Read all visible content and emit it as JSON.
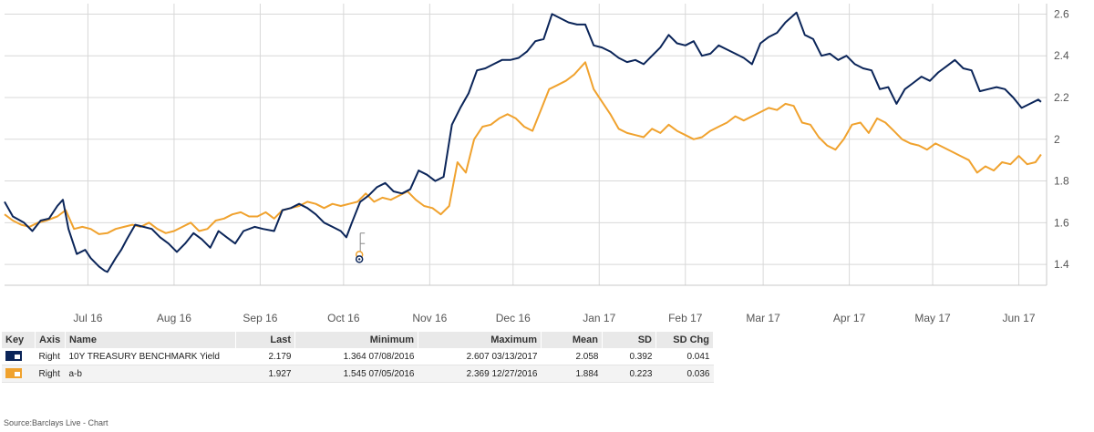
{
  "chart_data": {
    "type": "line",
    "y_axis_side": "right",
    "ylim": [
      1.3,
      2.65
    ],
    "yticks": [
      1.4,
      1.6,
      1.8,
      2,
      2.2,
      2.4,
      2.6
    ],
    "ytick_labels": [
      "1.4",
      "1.6",
      "1.8",
      "2",
      "2.2",
      "2.4",
      "2.6"
    ],
    "xlim": [
      "2016-06-01",
      "2017-06-11"
    ],
    "x_tick_dates": [
      "2016-07-01",
      "2016-08-01",
      "2016-09-01",
      "2016-10-01",
      "2016-11-01",
      "2016-12-01",
      "2017-01-01",
      "2017-02-01",
      "2017-03-01",
      "2017-04-01",
      "2017-05-01",
      "2017-06-01"
    ],
    "x_tick_labels": [
      "Jul 16",
      "Aug 16",
      "Sep 16",
      "Oct 16",
      "Nov 16",
      "Dec 16",
      "Jan 17",
      "Feb 17",
      "Mar 17",
      "Apr 17",
      "May 17",
      "Jun 17"
    ],
    "grid": true,
    "series": [
      {
        "name": "10Y TREASURY BENCHMARK Yield",
        "color": "#0b2559",
        "points": [
          [
            "2016-06-01",
            1.7
          ],
          [
            "2016-06-04",
            1.63
          ],
          [
            "2016-06-08",
            1.6
          ],
          [
            "2016-06-11",
            1.56
          ],
          [
            "2016-06-14",
            1.61
          ],
          [
            "2016-06-17",
            1.62
          ],
          [
            "2016-06-20",
            1.68
          ],
          [
            "2016-06-22",
            1.71
          ],
          [
            "2016-06-24",
            1.57
          ],
          [
            "2016-06-27",
            1.45
          ],
          [
            "2016-06-30",
            1.47
          ],
          [
            "2016-07-02",
            1.43
          ],
          [
            "2016-07-05",
            1.39
          ],
          [
            "2016-07-07",
            1.37
          ],
          [
            "2016-07-08",
            1.364
          ],
          [
            "2016-07-11",
            1.43
          ],
          [
            "2016-07-13",
            1.47
          ],
          [
            "2016-07-15",
            1.52
          ],
          [
            "2016-07-18",
            1.59
          ],
          [
            "2016-07-21",
            1.58
          ],
          [
            "2016-07-24",
            1.57
          ],
          [
            "2016-07-27",
            1.53
          ],
          [
            "2016-07-30",
            1.5
          ],
          [
            "2016-08-02",
            1.46
          ],
          [
            "2016-08-05",
            1.5
          ],
          [
            "2016-08-08",
            1.55
          ],
          [
            "2016-08-11",
            1.52
          ],
          [
            "2016-08-14",
            1.48
          ],
          [
            "2016-08-17",
            1.56
          ],
          [
            "2016-08-20",
            1.53
          ],
          [
            "2016-08-23",
            1.5
          ],
          [
            "2016-08-26",
            1.56
          ],
          [
            "2016-08-30",
            1.58
          ],
          [
            "2016-09-02",
            1.57
          ],
          [
            "2016-09-06",
            1.56
          ],
          [
            "2016-09-09",
            1.66
          ],
          [
            "2016-09-12",
            1.67
          ],
          [
            "2016-09-15",
            1.69
          ],
          [
            "2016-09-18",
            1.67
          ],
          [
            "2016-09-21",
            1.64
          ],
          [
            "2016-09-24",
            1.6
          ],
          [
            "2016-09-27",
            1.58
          ],
          [
            "2016-09-30",
            1.56
          ],
          [
            "2016-10-02",
            1.53
          ],
          [
            "2016-10-04",
            1.6
          ],
          [
            "2016-10-07",
            1.7
          ],
          [
            "2016-10-10",
            1.73
          ],
          [
            "2016-10-13",
            1.77
          ],
          [
            "2016-10-16",
            1.79
          ],
          [
            "2016-10-19",
            1.75
          ],
          [
            "2016-10-22",
            1.74
          ],
          [
            "2016-10-25",
            1.76
          ],
          [
            "2016-10-28",
            1.85
          ],
          [
            "2016-10-31",
            1.83
          ],
          [
            "2016-11-03",
            1.8
          ],
          [
            "2016-11-06",
            1.82
          ],
          [
            "2016-11-09",
            2.07
          ],
          [
            "2016-11-12",
            2.15
          ],
          [
            "2016-11-15",
            2.22
          ],
          [
            "2016-11-18",
            2.33
          ],
          [
            "2016-11-21",
            2.34
          ],
          [
            "2016-11-24",
            2.36
          ],
          [
            "2016-11-27",
            2.38
          ],
          [
            "2016-11-30",
            2.38
          ],
          [
            "2016-12-03",
            2.39
          ],
          [
            "2016-12-06",
            2.42
          ],
          [
            "2016-12-09",
            2.47
          ],
          [
            "2016-12-12",
            2.48
          ],
          [
            "2016-12-15",
            2.6
          ],
          [
            "2016-12-18",
            2.58
          ],
          [
            "2016-12-21",
            2.56
          ],
          [
            "2016-12-24",
            2.55
          ],
          [
            "2016-12-27",
            2.55
          ],
          [
            "2016-12-30",
            2.45
          ],
          [
            "2017-01-02",
            2.44
          ],
          [
            "2017-01-05",
            2.42
          ],
          [
            "2017-01-08",
            2.39
          ],
          [
            "2017-01-11",
            2.37
          ],
          [
            "2017-01-14",
            2.38
          ],
          [
            "2017-01-17",
            2.36
          ],
          [
            "2017-01-20",
            2.4
          ],
          [
            "2017-01-23",
            2.44
          ],
          [
            "2017-01-26",
            2.5
          ],
          [
            "2017-01-29",
            2.46
          ],
          [
            "2017-02-01",
            2.45
          ],
          [
            "2017-02-04",
            2.47
          ],
          [
            "2017-02-07",
            2.4
          ],
          [
            "2017-02-10",
            2.41
          ],
          [
            "2017-02-13",
            2.45
          ],
          [
            "2017-02-16",
            2.43
          ],
          [
            "2017-02-19",
            2.41
          ],
          [
            "2017-02-22",
            2.39
          ],
          [
            "2017-02-25",
            2.36
          ],
          [
            "2017-02-28",
            2.46
          ],
          [
            "2017-03-03",
            2.49
          ],
          [
            "2017-03-06",
            2.51
          ],
          [
            "2017-03-09",
            2.56
          ],
          [
            "2017-03-13",
            2.607
          ],
          [
            "2017-03-16",
            2.5
          ],
          [
            "2017-03-19",
            2.48
          ],
          [
            "2017-03-22",
            2.4
          ],
          [
            "2017-03-25",
            2.41
          ],
          [
            "2017-03-28",
            2.38
          ],
          [
            "2017-03-31",
            2.4
          ],
          [
            "2017-04-03",
            2.36
          ],
          [
            "2017-04-06",
            2.34
          ],
          [
            "2017-04-09",
            2.33
          ],
          [
            "2017-04-12",
            2.24
          ],
          [
            "2017-04-15",
            2.25
          ],
          [
            "2017-04-18",
            2.17
          ],
          [
            "2017-04-21",
            2.24
          ],
          [
            "2017-04-24",
            2.27
          ],
          [
            "2017-04-27",
            2.3
          ],
          [
            "2017-04-30",
            2.28
          ],
          [
            "2017-05-03",
            2.32
          ],
          [
            "2017-05-06",
            2.35
          ],
          [
            "2017-05-09",
            2.38
          ],
          [
            "2017-05-12",
            2.34
          ],
          [
            "2017-05-15",
            2.33
          ],
          [
            "2017-05-18",
            2.23
          ],
          [
            "2017-05-21",
            2.24
          ],
          [
            "2017-05-24",
            2.25
          ],
          [
            "2017-05-27",
            2.24
          ],
          [
            "2017-05-30",
            2.2
          ],
          [
            "2017-06-02",
            2.15
          ],
          [
            "2017-06-05",
            2.17
          ],
          [
            "2017-06-08",
            2.19
          ],
          [
            "2017-06-09",
            2.179
          ]
        ]
      },
      {
        "name": "a-b",
        "color": "#f0a22e",
        "points": [
          [
            "2016-06-01",
            1.64
          ],
          [
            "2016-06-04",
            1.61
          ],
          [
            "2016-06-07",
            1.59
          ],
          [
            "2016-06-10",
            1.58
          ],
          [
            "2016-06-13",
            1.6
          ],
          [
            "2016-06-16",
            1.61
          ],
          [
            "2016-06-20",
            1.63
          ],
          [
            "2016-06-23",
            1.66
          ],
          [
            "2016-06-26",
            1.57
          ],
          [
            "2016-06-29",
            1.58
          ],
          [
            "2016-07-02",
            1.57
          ],
          [
            "2016-07-05",
            1.545
          ],
          [
            "2016-07-08",
            1.55
          ],
          [
            "2016-07-11",
            1.57
          ],
          [
            "2016-07-14",
            1.58
          ],
          [
            "2016-07-17",
            1.59
          ],
          [
            "2016-07-20",
            1.58
          ],
          [
            "2016-07-23",
            1.6
          ],
          [
            "2016-07-26",
            1.57
          ],
          [
            "2016-07-29",
            1.55
          ],
          [
            "2016-08-01",
            1.56
          ],
          [
            "2016-08-04",
            1.58
          ],
          [
            "2016-08-07",
            1.6
          ],
          [
            "2016-08-10",
            1.56
          ],
          [
            "2016-08-13",
            1.57
          ],
          [
            "2016-08-16",
            1.61
          ],
          [
            "2016-08-19",
            1.62
          ],
          [
            "2016-08-22",
            1.64
          ],
          [
            "2016-08-25",
            1.65
          ],
          [
            "2016-08-28",
            1.63
          ],
          [
            "2016-08-31",
            1.63
          ],
          [
            "2016-09-03",
            1.65
          ],
          [
            "2016-09-06",
            1.62
          ],
          [
            "2016-09-09",
            1.66
          ],
          [
            "2016-09-12",
            1.67
          ],
          [
            "2016-09-15",
            1.68
          ],
          [
            "2016-09-18",
            1.7
          ],
          [
            "2016-09-21",
            1.69
          ],
          [
            "2016-09-24",
            1.67
          ],
          [
            "2016-09-27",
            1.69
          ],
          [
            "2016-09-30",
            1.68
          ],
          [
            "2016-10-03",
            1.69
          ],
          [
            "2016-10-06",
            1.7
          ],
          [
            "2016-10-09",
            1.74
          ],
          [
            "2016-10-12",
            1.7
          ],
          [
            "2016-10-15",
            1.72
          ],
          [
            "2016-10-18",
            1.71
          ],
          [
            "2016-10-21",
            1.73
          ],
          [
            "2016-10-24",
            1.75
          ],
          [
            "2016-10-27",
            1.71
          ],
          [
            "2016-10-30",
            1.68
          ],
          [
            "2016-11-02",
            1.67
          ],
          [
            "2016-11-05",
            1.64
          ],
          [
            "2016-11-08",
            1.68
          ],
          [
            "2016-11-11",
            1.89
          ],
          [
            "2016-11-14",
            1.84
          ],
          [
            "2016-11-17",
            2.0
          ],
          [
            "2016-11-20",
            2.06
          ],
          [
            "2016-11-23",
            2.07
          ],
          [
            "2016-11-26",
            2.1
          ],
          [
            "2016-11-29",
            2.12
          ],
          [
            "2016-12-02",
            2.1
          ],
          [
            "2016-12-05",
            2.06
          ],
          [
            "2016-12-08",
            2.04
          ],
          [
            "2016-12-11",
            2.14
          ],
          [
            "2016-12-14",
            2.24
          ],
          [
            "2016-12-17",
            2.26
          ],
          [
            "2016-12-20",
            2.28
          ],
          [
            "2016-12-23",
            2.31
          ],
          [
            "2016-12-27",
            2.369
          ],
          [
            "2016-12-30",
            2.24
          ],
          [
            "2017-01-02",
            2.18
          ],
          [
            "2017-01-05",
            2.12
          ],
          [
            "2017-01-08",
            2.05
          ],
          [
            "2017-01-11",
            2.03
          ],
          [
            "2017-01-14",
            2.02
          ],
          [
            "2017-01-17",
            2.01
          ],
          [
            "2017-01-20",
            2.05
          ],
          [
            "2017-01-23",
            2.03
          ],
          [
            "2017-01-26",
            2.07
          ],
          [
            "2017-01-29",
            2.04
          ],
          [
            "2017-02-01",
            2.02
          ],
          [
            "2017-02-04",
            2.0
          ],
          [
            "2017-02-07",
            2.01
          ],
          [
            "2017-02-10",
            2.04
          ],
          [
            "2017-02-13",
            2.06
          ],
          [
            "2017-02-16",
            2.08
          ],
          [
            "2017-02-19",
            2.11
          ],
          [
            "2017-02-22",
            2.09
          ],
          [
            "2017-02-25",
            2.11
          ],
          [
            "2017-02-28",
            2.13
          ],
          [
            "2017-03-03",
            2.15
          ],
          [
            "2017-03-06",
            2.14
          ],
          [
            "2017-03-09",
            2.17
          ],
          [
            "2017-03-12",
            2.16
          ],
          [
            "2017-03-15",
            2.08
          ],
          [
            "2017-03-18",
            2.07
          ],
          [
            "2017-03-21",
            2.01
          ],
          [
            "2017-03-24",
            1.97
          ],
          [
            "2017-03-27",
            1.95
          ],
          [
            "2017-03-30",
            2.0
          ],
          [
            "2017-04-02",
            2.07
          ],
          [
            "2017-04-05",
            2.08
          ],
          [
            "2017-04-08",
            2.03
          ],
          [
            "2017-04-11",
            2.1
          ],
          [
            "2017-04-14",
            2.08
          ],
          [
            "2017-04-17",
            2.04
          ],
          [
            "2017-04-20",
            2.0
          ],
          [
            "2017-04-23",
            1.98
          ],
          [
            "2017-04-26",
            1.97
          ],
          [
            "2017-04-29",
            1.95
          ],
          [
            "2017-05-02",
            1.98
          ],
          [
            "2017-05-05",
            1.96
          ],
          [
            "2017-05-08",
            1.94
          ],
          [
            "2017-05-11",
            1.92
          ],
          [
            "2017-05-14",
            1.9
          ],
          [
            "2017-05-17",
            1.84
          ],
          [
            "2017-05-20",
            1.87
          ],
          [
            "2017-05-23",
            1.85
          ],
          [
            "2017-05-26",
            1.89
          ],
          [
            "2017-05-29",
            1.88
          ],
          [
            "2017-06-01",
            1.92
          ],
          [
            "2017-06-04",
            1.88
          ],
          [
            "2017-06-07",
            1.89
          ],
          [
            "2017-06-09",
            1.927
          ]
        ]
      }
    ]
  },
  "table": {
    "headers": {
      "key": "Key",
      "axis": "Axis",
      "name": "Name",
      "last": "Last",
      "minimum": "Minimum",
      "maximum": "Maximum",
      "mean": "Mean",
      "sd": "SD",
      "sd_chg": "SD Chg"
    },
    "rows": [
      {
        "color": "#0b2559",
        "axis": "Right",
        "name": "10Y TREASURY BENCHMARK Yield",
        "last": "2.179",
        "minimum": "1.364 07/08/2016",
        "maximum": "2.607 03/13/2017",
        "mean": "2.058",
        "sd": "0.392",
        "sd_chg": "0.041"
      },
      {
        "color": "#f0a22e",
        "axis": "Right",
        "name": "a-b",
        "last": "1.927",
        "minimum": "1.545 07/05/2016",
        "maximum": "2.369 12/27/2016",
        "mean": "1.884",
        "sd": "0.223",
        "sd_chg": "0.036"
      }
    ]
  },
  "source_text": "Source:Barclays Live - Chart"
}
